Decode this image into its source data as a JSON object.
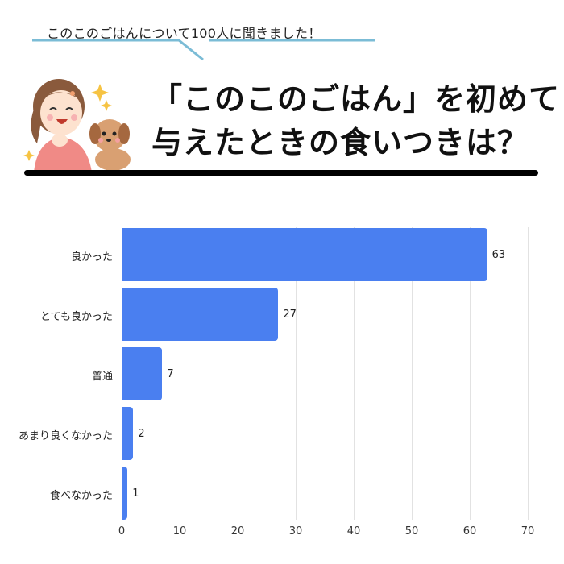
{
  "header": {
    "subtitle": "このこのごはんについて100人に聞きました！",
    "title_line1": "「このこのごはん」を初めて",
    "title_line2": "与えたときの食いつきは？",
    "illustration": "woman-and-dog-illustration",
    "accent_line_color": "#7bbcd6"
  },
  "chart_data": {
    "type": "bar",
    "orientation": "horizontal",
    "title": "「このこのごはん」を初めて与えたときの食いつきは？",
    "subtitle": "このこのごはんについて100人に聞きました！",
    "categories": [
      "良かった",
      "とても良かった",
      "普通",
      "あまり良くなかった",
      "食べなかった"
    ],
    "values": [
      63,
      27,
      7,
      2,
      1
    ],
    "value_labels": [
      "63",
      "27",
      "7",
      "2",
      "1"
    ],
    "xlabel": "",
    "ylabel": "",
    "xlim": [
      0,
      70
    ],
    "xticks": [
      "0",
      "10",
      "20",
      "30",
      "40",
      "50",
      "60",
      "70"
    ],
    "grid": true,
    "legend": "none",
    "bar_color": "#4a7ff0"
  }
}
